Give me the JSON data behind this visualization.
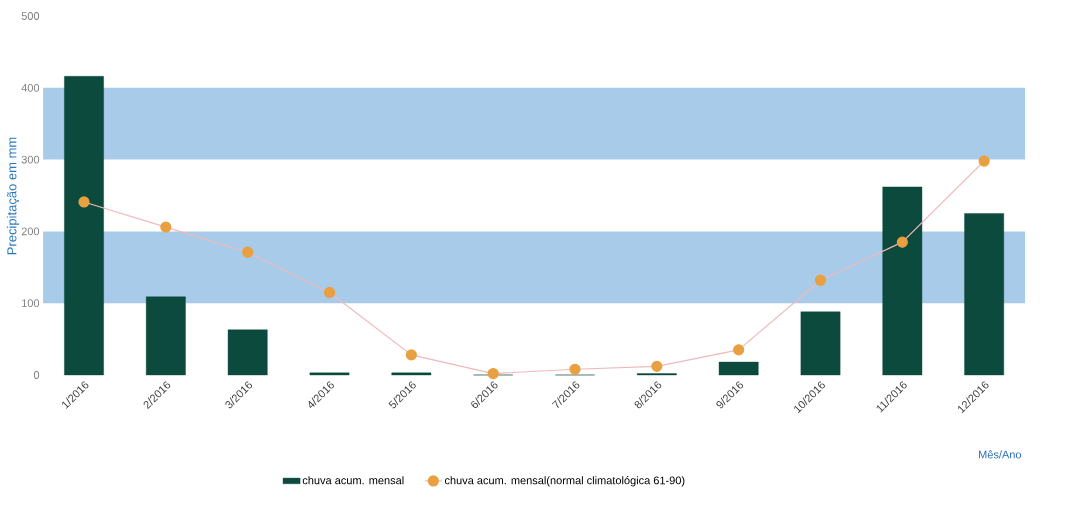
{
  "chart_data": {
    "type": "bar",
    "ylabel": "Precipitação em mm",
    "xlabel": "Mês/Ano",
    "categories": [
      "1/2016",
      "2/2016",
      "3/2016",
      "4/2016",
      "5/2016",
      "6/2016",
      "7/2016",
      "8/2016",
      "9/2016",
      "10/2016",
      "11/2016",
      "12/2016"
    ],
    "series": [
      {
        "name": "chuva acum. mensal",
        "color": "#0b4a3c",
        "values": [
          416,
          109,
          63,
          3,
          3,
          0,
          0,
          2,
          18,
          88,
          262,
          225
        ]
      },
      {
        "name": "chuva acum. mensal(normal climatológica 61-90)",
        "type": "line",
        "color": "#e8a040",
        "marker": "circle",
        "values": [
          241,
          206,
          171,
          115,
          28,
          2,
          8,
          12,
          35,
          132,
          185,
          298
        ]
      }
    ],
    "ylim": [
      0,
      500
    ],
    "yticks": [
      0,
      100,
      200,
      300,
      400,
      500
    ],
    "bands": [
      {
        "axis": "y",
        "from": 100,
        "to": 200,
        "color": "#a9cbea"
      },
      {
        "axis": "y",
        "from": 300,
        "to": 400,
        "color": "#a9cbea"
      }
    ],
    "legend": "bottom"
  }
}
